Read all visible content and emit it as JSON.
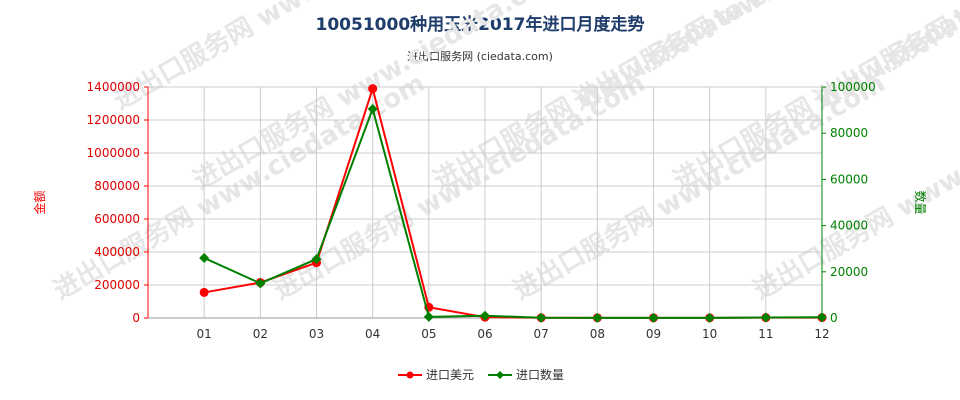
{
  "header": {
    "title": "10051000种用玉米2017年进口月度走势",
    "subtitle": "进出口服务网 (ciedata.com)"
  },
  "watermark": "进出口服务网 www.ciedata.com",
  "colors": {
    "left_series": "#ff0000",
    "right_series": "#008000",
    "grid": "#cccccc"
  },
  "chart_data": {
    "type": "line",
    "categories": [
      "01",
      "02",
      "03",
      "04",
      "05",
      "06",
      "07",
      "08",
      "09",
      "10",
      "11",
      "12"
    ],
    "ylabel_left": "金额",
    "ylabel_right": "数量",
    "ylim_left": [
      0,
      1400000
    ],
    "ylim_right": [
      0,
      100000
    ],
    "yticks_left": [
      "0",
      "200000",
      "400000",
      "600000",
      "800000",
      "1000000",
      "1200000",
      "1400000"
    ],
    "yticks_right": [
      "0",
      "20000",
      "40000",
      "60000",
      "80000",
      "100000"
    ],
    "grid": true,
    "legend_position": "bottom",
    "series": [
      {
        "name": "进口美元",
        "axis": "left",
        "color": "#ff0000",
        "marker": "circle",
        "values": [
          155000,
          215000,
          335000,
          1390000,
          65000,
          5000,
          1500,
          1000,
          1000,
          1000,
          2000,
          2500
        ]
      },
      {
        "name": "进口数量",
        "axis": "right",
        "color": "#008000",
        "marker": "diamond",
        "values": [
          26000,
          15000,
          25500,
          90500,
          500,
          1000,
          100,
          80,
          80,
          80,
          200,
          300
        ]
      }
    ]
  }
}
